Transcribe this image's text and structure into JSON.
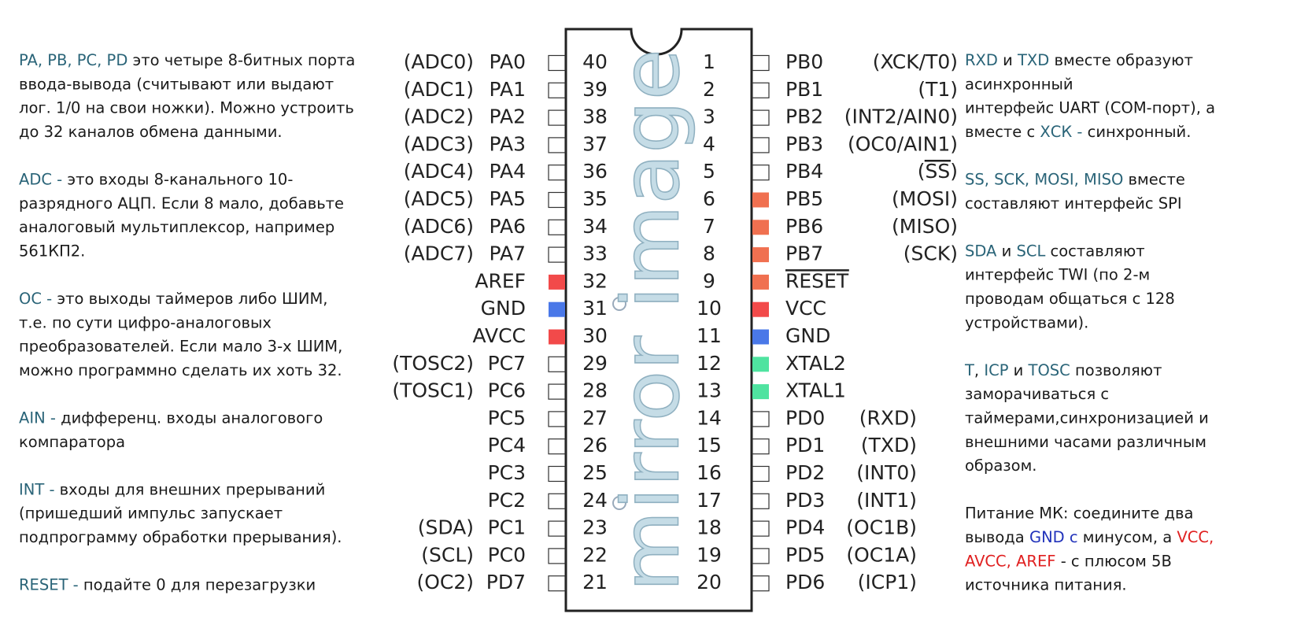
{
  "watermark": "mirror image",
  "term_color": "#2a6478",
  "left_notes": [
    {
      "lines": [
        [
          {
            "text": "PA, PB, PC, PD",
            "color": "#2a6478"
          },
          {
            "text": " это четыре 8-битных порта"
          }
        ],
        [
          {
            "text": "ввода-вывода (считывают или выдают"
          }
        ],
        [
          {
            "text": "лог. 1/0 на свои ножки). Можно устроить"
          }
        ],
        [
          {
            "text": "до 32 каналов обмена данными."
          }
        ]
      ]
    },
    {
      "lines": [
        [
          {
            "text": "ADC -",
            "color": "#2a6478"
          },
          {
            "text": " это входы 8-канального 10-"
          }
        ],
        [
          {
            "text": "разрядного АЦП. Если 8 мало, добавьте"
          }
        ],
        [
          {
            "text": "аналоговый мультиплексор, например"
          }
        ],
        [
          {
            "text": "561КП2."
          }
        ]
      ]
    },
    {
      "lines": [
        [
          {
            "text": "OC -",
            "color": "#2a6478"
          },
          {
            "text": " это выходы таймеров либо ШИМ,"
          }
        ],
        [
          {
            "text": "т.е. по сути цифро-аналоговых"
          }
        ],
        [
          {
            "text": "преобразователей. Если мало 3-х ШИМ,"
          }
        ],
        [
          {
            "text": "можно программно сделать их хоть 32."
          }
        ]
      ]
    },
    {
      "lines": [
        [
          {
            "text": "AIN -",
            "color": "#2a6478"
          },
          {
            "text": " дифференц. входы аналогового"
          }
        ],
        [
          {
            "text": "компаратора"
          }
        ]
      ]
    },
    {
      "lines": [
        [
          {
            "text": "INT -",
            "color": "#2a6478"
          },
          {
            "text": " входы для внешних прерываний"
          }
        ],
        [
          {
            "text": "(пришедший импульс запускает"
          }
        ],
        [
          {
            "text": "подпрограмму обработки прерывания)."
          }
        ]
      ]
    },
    {
      "lines": [
        [
          {
            "text": "RESET -",
            "color": "#2a6478"
          },
          {
            "text": " подайте 0 для перезагрузки"
          }
        ]
      ]
    }
  ],
  "right_notes": [
    {
      "lines": [
        [
          {
            "text": "RXD",
            "color": "#2a6478"
          },
          {
            "text": " и "
          },
          {
            "text": "TXD",
            "color": "#2a6478"
          },
          {
            "text": " вместе образуют"
          }
        ],
        [
          {
            "text": "асинхронный"
          }
        ],
        [
          {
            "text": "интерфейс UART (COM-порт), а"
          }
        ],
        [
          {
            "text": "вместе с "
          },
          {
            "text": "ХСК -",
            "color": "#2a6478"
          },
          {
            "text": " синхронный."
          }
        ]
      ]
    },
    {
      "lines": [
        [
          {
            "text": "SS, SCK, MOSI, MISO",
            "color": "#2a6478"
          },
          {
            "text": " вместе"
          }
        ],
        [
          {
            "text": "составляют интерфейс SPI"
          }
        ]
      ]
    },
    {
      "lines": [
        [
          {
            "text": "SDA",
            "color": "#2a6478"
          },
          {
            "text": " и "
          },
          {
            "text": "SCL",
            "color": "#2a6478"
          },
          {
            "text": " составляют"
          }
        ],
        [
          {
            "text": "интерфейс TWI (по 2-м"
          }
        ],
        [
          {
            "text": "проводам общаться с 128"
          }
        ],
        [
          {
            "text": "устройствами)."
          }
        ]
      ]
    },
    {
      "lines": [
        [
          {
            "text": "T",
            "color": "#2a6478"
          },
          {
            "text": ", "
          },
          {
            "text": "ICP",
            "color": "#2a6478"
          },
          {
            "text": " и "
          },
          {
            "text": "TOSC",
            "color": "#2a6478"
          },
          {
            "text": " позволяют"
          }
        ],
        [
          {
            "text": "заморачиваться с"
          }
        ],
        [
          {
            "text": "таймерами,синхронизацией и"
          }
        ],
        [
          {
            "text": "внешними часами различным"
          }
        ],
        [
          {
            "text": "образом."
          }
        ]
      ]
    },
    {
      "lines": [
        [
          {
            "text": "Питание МК: соедините два"
          }
        ],
        [
          {
            "text": "вывода "
          },
          {
            "text": "GND с",
            "color": "#2233bb"
          },
          {
            "text": " минусом, а "
          },
          {
            "text": "VCC,",
            "color": "#e02020"
          }
        ],
        [
          {
            "text": "AVCC, AREF",
            "color": "#e02020"
          },
          {
            "text": " - с плюсом 5В"
          }
        ],
        [
          {
            "text": "источника питания."
          }
        ]
      ]
    }
  ],
  "left_pins": [
    {
      "number": 40,
      "name": "PA0",
      "alt": "(ADC0)"
    },
    {
      "number": 39,
      "name": "PA1",
      "alt": "(ADC1)"
    },
    {
      "number": 38,
      "name": "PA2",
      "alt": "(ADC2)"
    },
    {
      "number": 37,
      "name": "PA3",
      "alt": "(ADC3)"
    },
    {
      "number": 36,
      "name": "PA4",
      "alt": "(ADC4)"
    },
    {
      "number": 35,
      "name": "PA5",
      "alt": "(ADC5)"
    },
    {
      "number": 34,
      "name": "PA6",
      "alt": "(ADC6)"
    },
    {
      "number": 33,
      "name": "PA7",
      "alt": "(ADC7)"
    },
    {
      "number": 32,
      "name": "AREF",
      "color": "#f24a4a"
    },
    {
      "number": 31,
      "name": "GND",
      "color": "#4a78e8"
    },
    {
      "number": 30,
      "name": "AVCC",
      "color": "#f24a4a"
    },
    {
      "number": 29,
      "name": "PC7",
      "alt": "(TOSC2)"
    },
    {
      "number": 28,
      "name": "PC6",
      "alt": "(TOSC1)"
    },
    {
      "number": 27,
      "name": "PC5"
    },
    {
      "number": 26,
      "name": "PC4"
    },
    {
      "number": 25,
      "name": "PC3"
    },
    {
      "number": 24,
      "name": "PC2"
    },
    {
      "number": 23,
      "name": "PC1",
      "alt": "(SDA)"
    },
    {
      "number": 22,
      "name": "PC0",
      "alt": "(SCL)"
    },
    {
      "number": 21,
      "name": "PD7",
      "alt": "(OC2)"
    }
  ],
  "right_pins": [
    {
      "number": 1,
      "name": "PB0",
      "alt": "(XCK/T0)"
    },
    {
      "number": 2,
      "name": "PB1",
      "alt": "(T1)"
    },
    {
      "number": 3,
      "name": "PB2",
      "alt": "(INT2/AIN0)"
    },
    {
      "number": 4,
      "name": "PB3",
      "alt": "(OC0/AIN1)"
    },
    {
      "number": 5,
      "name": "PB4",
      "alt": "(SS)",
      "overline": "alt"
    },
    {
      "number": 6,
      "name": "PB5",
      "alt": "(MOSI)",
      "color": "#f07050"
    },
    {
      "number": 7,
      "name": "PB6",
      "alt": "(MISO)",
      "color": "#f07050"
    },
    {
      "number": 8,
      "name": "PB7",
      "alt": "(SCK)",
      "color": "#f07050"
    },
    {
      "number": 9,
      "name": "RESET",
      "color": "#f07050",
      "overline": "name"
    },
    {
      "number": 10,
      "name": "VCC",
      "color": "#f24a4a"
    },
    {
      "number": 11,
      "name": "GND",
      "color": "#4a78e8"
    },
    {
      "number": 12,
      "name": "XTAL2",
      "color": "#4fe3a0"
    },
    {
      "number": 13,
      "name": "XTAL1",
      "color": "#4fe3a0"
    },
    {
      "number": 14,
      "name": "PD0",
      "alt": "(RXD)"
    },
    {
      "number": 15,
      "name": "PD1",
      "alt": "(TXD)"
    },
    {
      "number": 16,
      "name": "PD2",
      "alt": "(INT0)"
    },
    {
      "number": 17,
      "name": "PD3",
      "alt": "(INT1)"
    },
    {
      "number": 18,
      "name": "PD4",
      "alt": "(OC1B)"
    },
    {
      "number": 19,
      "name": "PD5",
      "alt": "(OC1A)"
    },
    {
      "number": 20,
      "name": "PD6",
      "alt": "(ICP1)"
    }
  ]
}
